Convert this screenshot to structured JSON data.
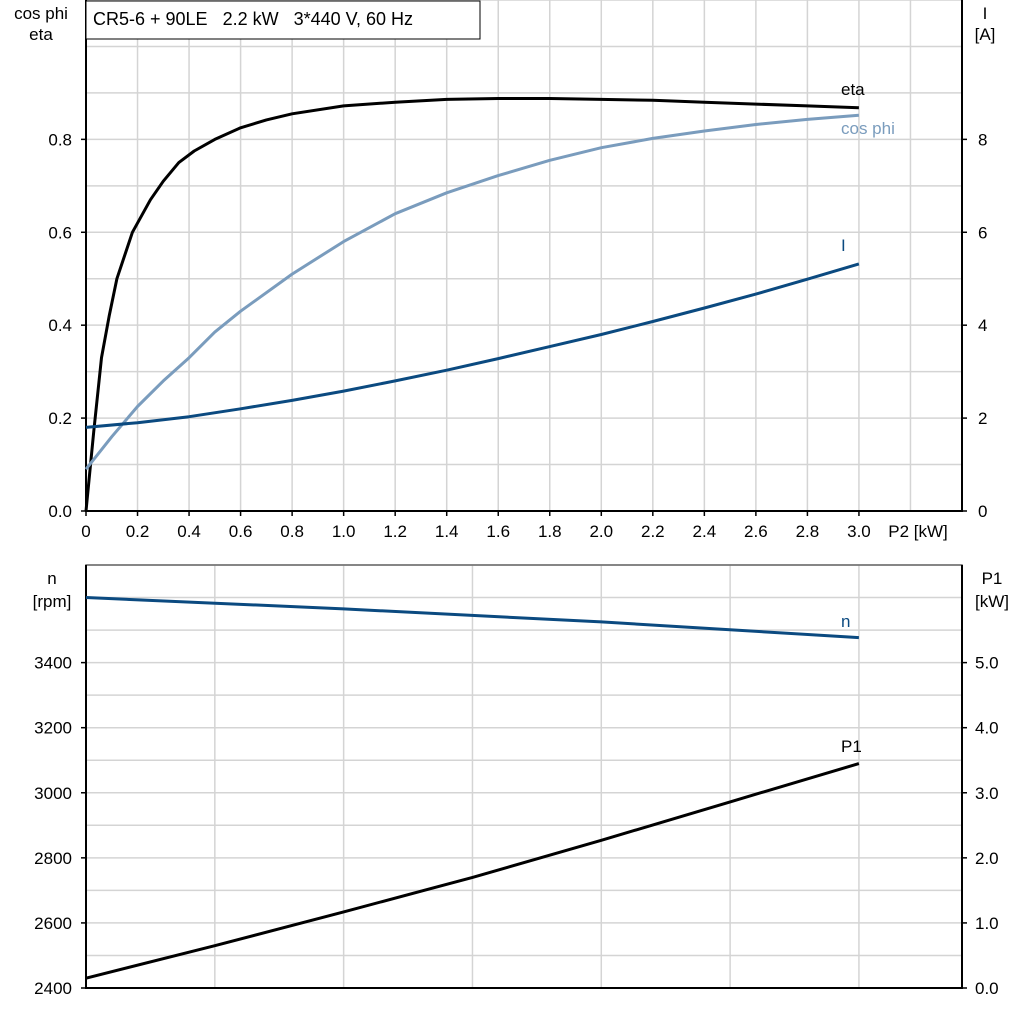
{
  "title_box": "CR5-6 + 90LE   2.2 kW   3*440 V, 60 Hz",
  "colors": {
    "eta": "#000000",
    "cos_phi": "#7a9cbd",
    "I": "#0b4a80",
    "n": "#0b4a80",
    "P1": "#000000"
  },
  "chart_data": [
    {
      "type": "line",
      "xlabel": "P2 [kW]",
      "ylabel_left": [
        "cos phi",
        "eta"
      ],
      "ylabel_right": [
        "I",
        "[A]"
      ],
      "xlim": [
        0,
        3.4
      ],
      "ylim_left": [
        0,
        1.1
      ],
      "ylim_right": [
        0,
        11
      ],
      "xticks": [
        "0",
        "0.2",
        "0.4",
        "0.6",
        "0.8",
        "1.0",
        "1.2",
        "1.4",
        "1.6",
        "1.8",
        "2.0",
        "2.2",
        "2.4",
        "2.6",
        "2.8",
        "3.0"
      ],
      "yticks_left": [
        "0.0",
        "0.2",
        "0.4",
        "0.6",
        "0.8"
      ],
      "yticks_right": [
        "0",
        "2",
        "4",
        "6",
        "8"
      ],
      "grid": true,
      "series": [
        {
          "name": "eta",
          "axis": "left",
          "x": [
            0,
            0.03,
            0.06,
            0.09,
            0.12,
            0.18,
            0.25,
            0.3,
            0.36,
            0.42,
            0.5,
            0.6,
            0.7,
            0.8,
            1.0,
            1.2,
            1.4,
            1.6,
            1.8,
            2.0,
            2.2,
            2.4,
            2.6,
            2.8,
            3.0
          ],
          "y": [
            0,
            0.17,
            0.33,
            0.42,
            0.5,
            0.6,
            0.67,
            0.71,
            0.75,
            0.775,
            0.8,
            0.825,
            0.842,
            0.855,
            0.872,
            0.88,
            0.886,
            0.888,
            0.888,
            0.886,
            0.884,
            0.88,
            0.876,
            0.872,
            0.868
          ]
        },
        {
          "name": "cos phi",
          "axis": "left",
          "x": [
            0,
            0.1,
            0.2,
            0.3,
            0.4,
            0.5,
            0.6,
            0.8,
            1.0,
            1.2,
            1.4,
            1.6,
            1.8,
            2.0,
            2.2,
            2.4,
            2.6,
            2.8,
            3.0
          ],
          "y": [
            0.09,
            0.16,
            0.225,
            0.28,
            0.33,
            0.385,
            0.43,
            0.51,
            0.58,
            0.64,
            0.685,
            0.722,
            0.755,
            0.782,
            0.802,
            0.818,
            0.832,
            0.843,
            0.852
          ]
        },
        {
          "name": "I",
          "axis": "right",
          "x": [
            0,
            0.2,
            0.4,
            0.6,
            0.8,
            1.0,
            1.2,
            1.4,
            1.6,
            1.8,
            2.0,
            2.2,
            2.4,
            2.6,
            2.8,
            3.0
          ],
          "y": [
            1.8,
            1.9,
            2.03,
            2.2,
            2.38,
            2.58,
            2.8,
            3.03,
            3.28,
            3.54,
            3.8,
            4.08,
            4.37,
            4.67,
            4.99,
            5.32
          ]
        }
      ]
    },
    {
      "type": "line",
      "xlim": [
        0,
        3.4
      ],
      "ylabel_left": [
        "n",
        "[rpm]"
      ],
      "ylabel_right": [
        "P1",
        "[kW]"
      ],
      "ylim_left": [
        2400,
        3700
      ],
      "ylim_right": [
        0,
        6.5
      ],
      "yticks_left": [
        "2400",
        "2600",
        "2800",
        "3000",
        "3200",
        "3400"
      ],
      "yticks_right": [
        "0.0",
        "1.0",
        "2.0",
        "3.0",
        "4.0",
        "5.0"
      ],
      "grid": true,
      "series": [
        {
          "name": "n",
          "axis": "left",
          "x": [
            0,
            1.0,
            2.0,
            3.0
          ],
          "y": [
            3600,
            3565,
            3525,
            3477
          ]
        },
        {
          "name": "P1",
          "axis": "right",
          "x": [
            0,
            0.5,
            1.0,
            1.5,
            2.0,
            2.5,
            3.0
          ],
          "y": [
            0.15,
            0.65,
            1.17,
            1.7,
            2.27,
            2.86,
            3.45
          ]
        }
      ]
    }
  ]
}
